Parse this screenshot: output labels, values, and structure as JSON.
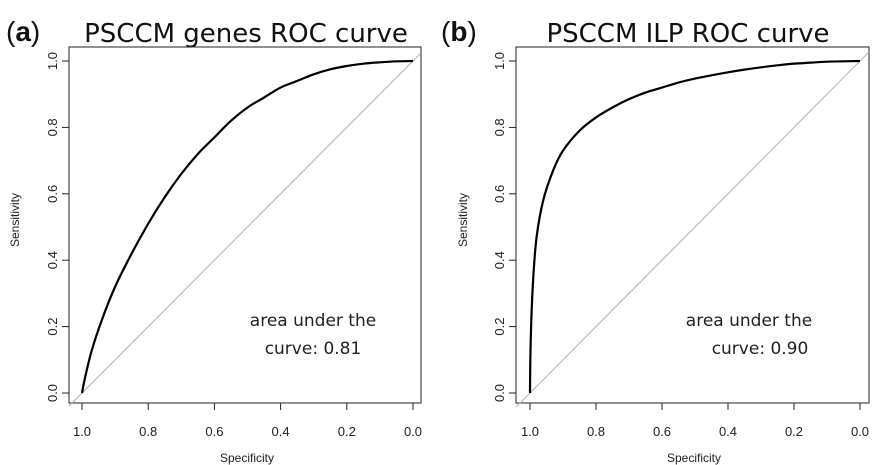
{
  "panels": [
    {
      "letter": "a",
      "title": "PSCCM genes ROC curve",
      "annotation_line1": "area under the",
      "annotation_line2": "curve: 0.81"
    },
    {
      "letter": "b",
      "title": "PSCCM ILP ROC curve",
      "annotation_line1": "area under the",
      "annotation_line2": "curve: 0.90"
    }
  ],
  "colors": {
    "curve": "#000000",
    "diagonal": "#b0b0b0",
    "axis": "#222222"
  },
  "chart_data": [
    {
      "type": "line",
      "title": "PSCCM genes ROC curve",
      "xlabel": "Specificity",
      "ylabel": "Sensitivity",
      "xlim": [
        1.0,
        0.0
      ],
      "ylim": [
        0.0,
        1.0
      ],
      "x_ticks": [
        "1.0",
        "0.8",
        "0.6",
        "0.4",
        "0.2",
        "0.0"
      ],
      "y_ticks": [
        "0.0",
        "0.2",
        "0.4",
        "0.6",
        "0.8",
        "1.0"
      ],
      "grid": false,
      "auc": 0.81,
      "annotation": "area under the curve: 0.81",
      "series": [
        {
          "x": [
            1.0,
            0.99,
            0.97,
            0.94,
            0.9,
            0.85,
            0.8,
            0.75,
            0.7,
            0.65,
            0.6,
            0.55,
            0.5,
            0.45,
            0.4,
            0.35,
            0.3,
            0.25,
            0.2,
            0.15,
            0.1,
            0.05,
            0.0
          ],
          "y": [
            0.0,
            0.05,
            0.13,
            0.22,
            0.32,
            0.42,
            0.51,
            0.59,
            0.66,
            0.72,
            0.77,
            0.82,
            0.86,
            0.89,
            0.92,
            0.94,
            0.96,
            0.975,
            0.985,
            0.992,
            0.996,
            0.999,
            1.0
          ]
        }
      ]
    },
    {
      "type": "line",
      "title": "PSCCM ILP ROC curve",
      "xlabel": "Specificity",
      "ylabel": "Sensitivity",
      "xlim": [
        1.0,
        0.0
      ],
      "ylim": [
        0.0,
        1.0
      ],
      "x_ticks": [
        "1.0",
        "0.8",
        "0.6",
        "0.4",
        "0.2",
        "0.0"
      ],
      "y_ticks": [
        "0.0",
        "0.2",
        "0.4",
        "0.6",
        "0.8",
        "1.0"
      ],
      "grid": false,
      "auc": 0.9,
      "annotation": "area under the curve: 0.90",
      "series": [
        {
          "x": [
            1.0,
            0.999,
            0.996,
            0.99,
            0.98,
            0.96,
            0.93,
            0.9,
            0.85,
            0.8,
            0.75,
            0.7,
            0.65,
            0.6,
            0.55,
            0.5,
            0.45,
            0.4,
            0.35,
            0.3,
            0.25,
            0.2,
            0.15,
            0.1,
            0.05,
            0.0
          ],
          "y": [
            0.0,
            0.1,
            0.22,
            0.35,
            0.47,
            0.58,
            0.67,
            0.73,
            0.79,
            0.83,
            0.86,
            0.885,
            0.905,
            0.92,
            0.935,
            0.947,
            0.957,
            0.966,
            0.974,
            0.981,
            0.987,
            0.992,
            0.995,
            0.998,
            0.999,
            1.0
          ]
        }
      ]
    }
  ]
}
